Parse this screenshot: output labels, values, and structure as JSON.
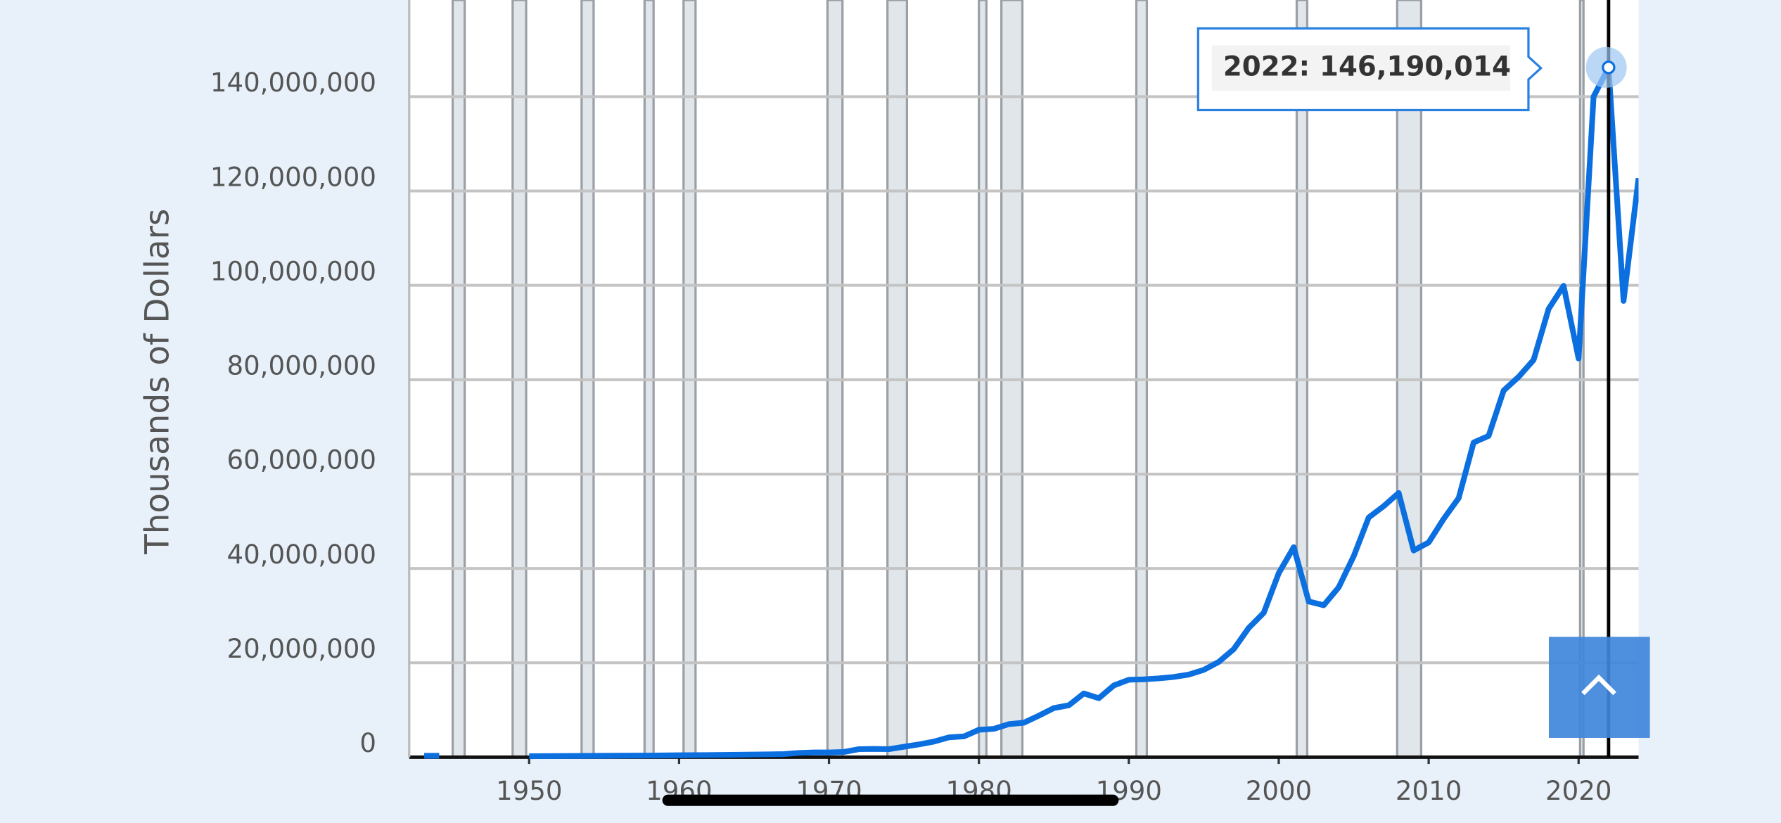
{
  "chart_data": {
    "type": "line",
    "y_axis_title": "Thousands of Dollars",
    "x": [
      1943,
      1944,
      1945,
      1946,
      1947,
      1948,
      1949,
      1950,
      1951,
      1952,
      1953,
      1954,
      1955,
      1956,
      1957,
      1958,
      1959,
      1960,
      1961,
      1962,
      1963,
      1964,
      1965,
      1966,
      1967,
      1968,
      1969,
      1970,
      1971,
      1972,
      1973,
      1974,
      1975,
      1976,
      1977,
      1978,
      1979,
      1980,
      1981,
      1982,
      1983,
      1984,
      1985,
      1986,
      1987,
      1988,
      1989,
      1990,
      1991,
      1992,
      1993,
      1994,
      1995,
      1996,
      1997,
      1998,
      1999,
      2000,
      2001,
      2002,
      2003,
      2004,
      2005,
      2006,
      2007,
      2008,
      2009,
      2010,
      2011,
      2012,
      2013,
      2014,
      2015,
      2016,
      2017,
      2018,
      2019,
      2020,
      2021,
      2022,
      2023,
      2024
    ],
    "series": [
      {
        "color": "#0b6fe0",
        "values": [
          300000,
          300000,
          null,
          null,
          null,
          null,
          null,
          200000,
          220000,
          240000,
          260000,
          270000,
          290000,
          310000,
          330000,
          340000,
          370000,
          400000,
          420000,
          450000,
          480000,
          520000,
          560000,
          600000,
          650000,
          900000,
          1000000,
          1000000,
          1100000,
          1700000,
          1750000,
          1700000,
          2200000,
          2700000,
          3300000,
          4200000,
          4400000,
          5800000,
          6000000,
          7000000,
          7300000,
          8800000,
          10400000,
          11000000,
          13500000,
          12500000,
          15200000,
          16400000,
          16500000,
          16700000,
          17000000,
          17500000,
          18500000,
          20200000,
          22900000,
          27400000,
          30600000,
          39000000,
          44500000,
          33000000,
          32200000,
          36000000,
          42600000,
          50800000,
          53200000,
          56000000,
          43800000,
          45500000,
          50500000,
          54900000,
          66700000,
          68100000,
          77700000,
          80600000,
          84200000,
          95000000,
          99900000,
          84500000,
          140000000,
          146190014,
          96700000,
          122700000
        ]
      }
    ],
    "recessions": [
      [
        1944.9,
        1945.7
      ],
      [
        1948.9,
        1949.8
      ],
      [
        1953.5,
        1954.3
      ],
      [
        1957.7,
        1958.3
      ],
      [
        1960.3,
        1961.1
      ],
      [
        1969.9,
        1970.9
      ],
      [
        1973.9,
        1975.2
      ],
      [
        1980.0,
        1980.5
      ],
      [
        1981.5,
        1982.9
      ],
      [
        1990.5,
        1991.2
      ],
      [
        2001.2,
        2001.9
      ],
      [
        2007.9,
        2009.5
      ],
      [
        2020.1,
        2020.3
      ]
    ],
    "xlim": [
      1942,
      2024
    ],
    "xticks": [
      1950,
      1960,
      1970,
      1980,
      1990,
      2000,
      2010,
      2020
    ],
    "ylim": [
      0,
      160000000
    ],
    "yticks": [
      0,
      {
        "value": 20000000,
        "label": "20,000,000"
      },
      {
        "value": 40000000,
        "label": "40,000,000"
      },
      {
        "value": 60000000,
        "label": "60,000,000"
      },
      {
        "value": 80000000,
        "label": "80,000,000"
      },
      {
        "value": 100000000,
        "label": "100,000,000"
      },
      {
        "value": 120000000,
        "label": "120,000,000"
      },
      {
        "value": 140000000,
        "label": "140,000,000"
      }
    ],
    "grid": true,
    "tooltip": {
      "index": 79,
      "label": "2022:",
      "value_label": "146,190,014"
    }
  }
}
